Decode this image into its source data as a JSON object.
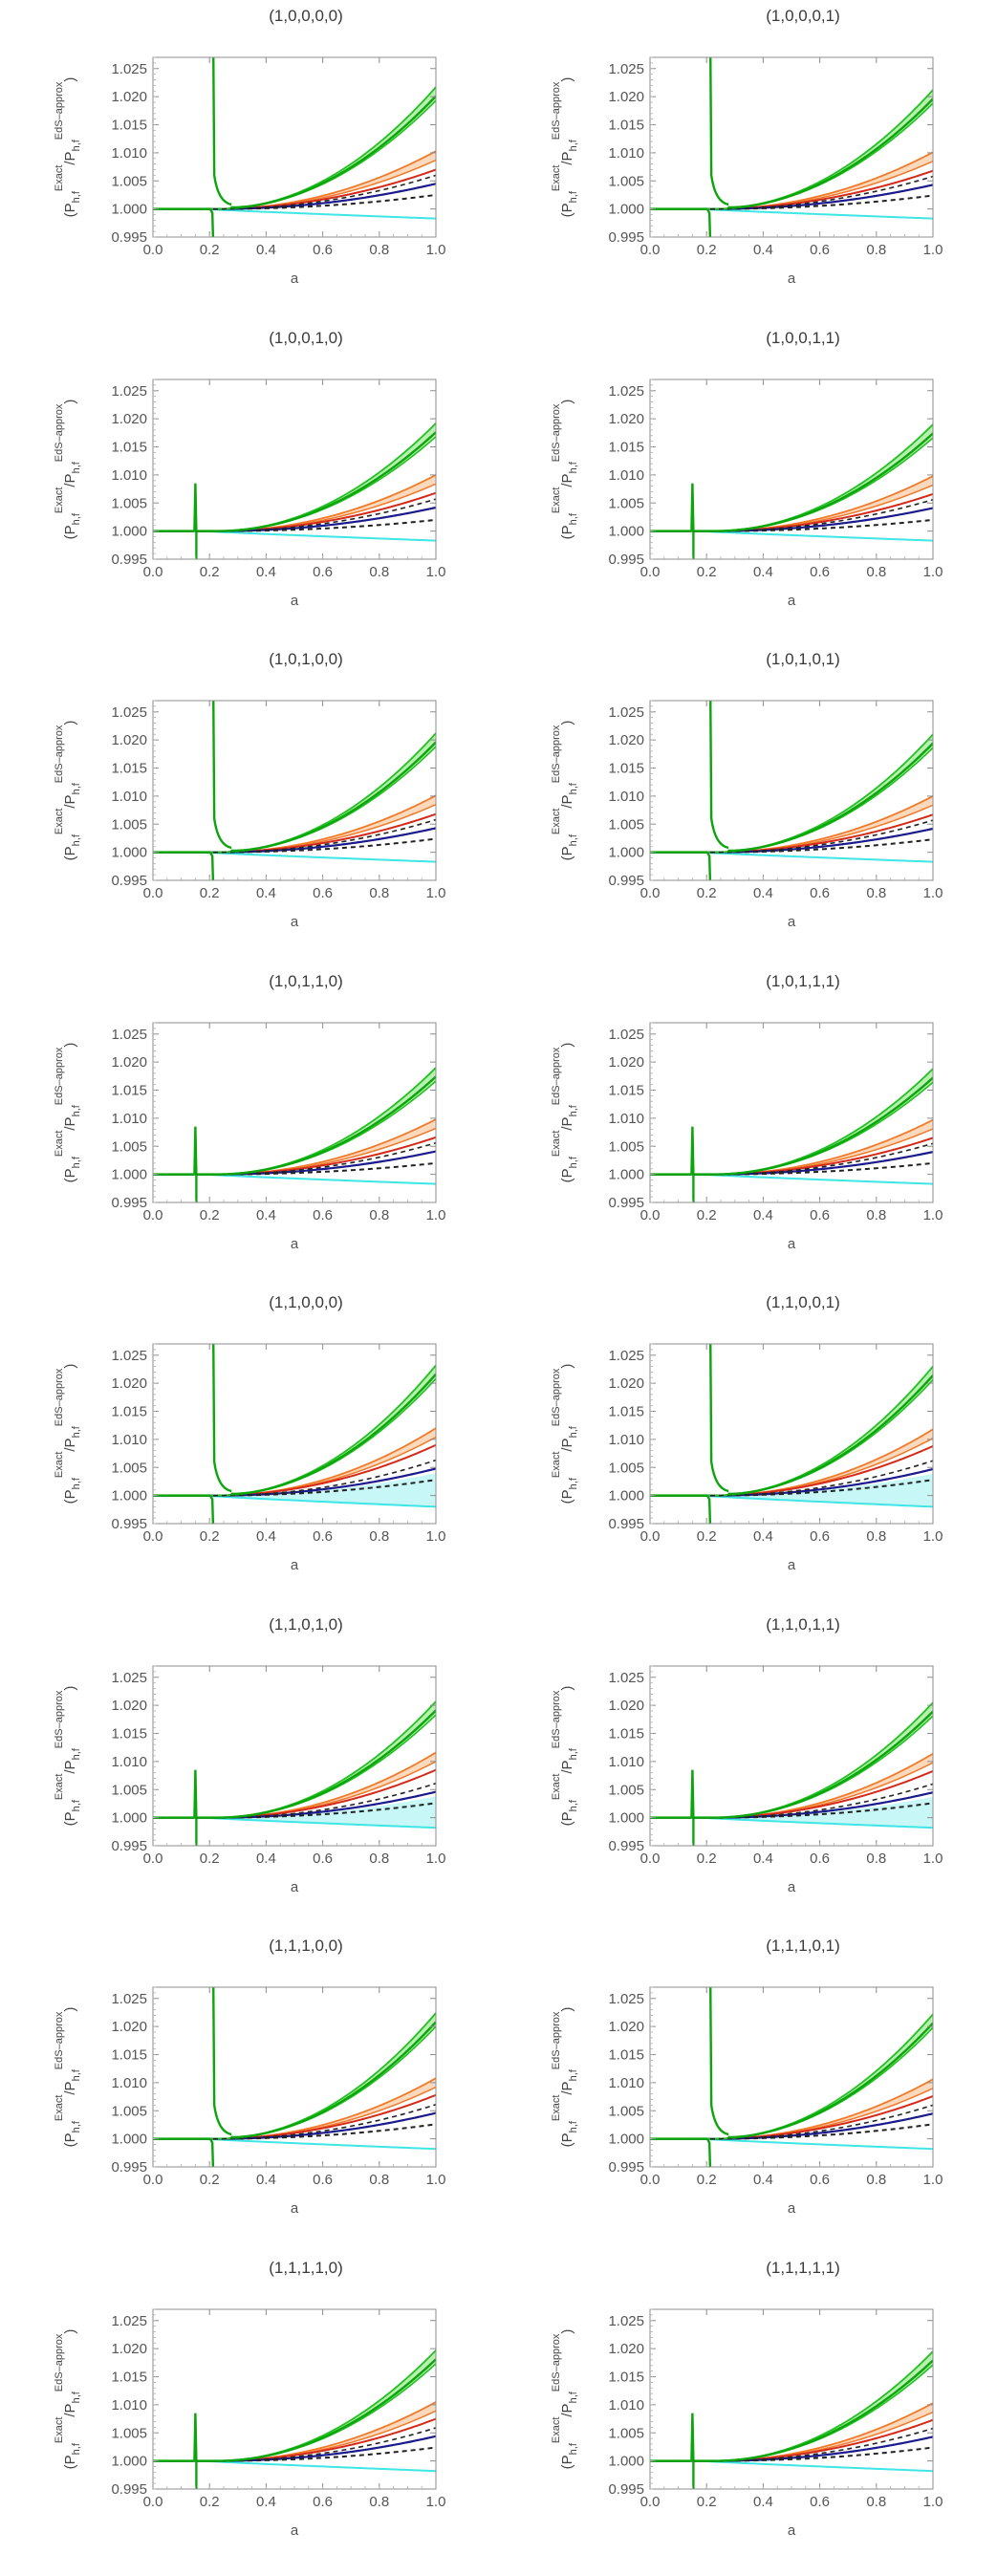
{
  "colors": {
    "green": "#1fc21f",
    "orange": "#f07a2a",
    "red": "#d42a1a",
    "navy": "#1a1a8c",
    "cyan": "#3ee6e6",
    "cyan_fill": "#c8f7f7",
    "green_fill": "#b9efb0",
    "orange_fill": "#fbd9bd",
    "dashed": "#222222"
  },
  "chart_data": [
    {
      "type": "line",
      "title": "(1,0,0,0,0)",
      "xlabel": "a",
      "ylabel": "(P_{h,f}^{Exact}/P_{h,f}^{EdS-approx})",
      "xlim": [
        0,
        1
      ],
      "ylim": [
        0.995,
        1.027
      ],
      "xticks": [
        "0.0",
        "0.2",
        "0.4",
        "0.6",
        "0.8",
        "1.0"
      ],
      "yticks": [
        "0.995",
        "1.000",
        "1.005",
        "1.010",
        "1.015",
        "1.020",
        "1.025"
      ],
      "spike_a": 0.21,
      "spike_kind": "tall",
      "series": [
        {
          "name": "green",
          "end_value": 1.0205,
          "band": 0.0012
        },
        {
          "name": "orange",
          "end_value": 1.0095,
          "band": 0.0008
        },
        {
          "name": "red",
          "end_value": 1.007
        },
        {
          "name": "navy",
          "end_value": 1.0045,
          "dashed_end": 1.0025
        },
        {
          "name": "cyan",
          "end_value": 0.9983
        }
      ]
    },
    {
      "type": "line",
      "title": "(1,0,0,0,1)",
      "xlabel": "a",
      "ylabel": "(P_{h,f}^{Exact}/P_{h,f}^{EdS-approx})",
      "xlim": [
        0,
        1
      ],
      "ylim": [
        0.995,
        1.027
      ],
      "xticks": [
        "0.0",
        "0.2",
        "0.4",
        "0.6",
        "0.8",
        "1.0"
      ],
      "yticks": [
        "0.995",
        "1.000",
        "1.005",
        "1.010",
        "1.015",
        "1.020",
        "1.025"
      ],
      "spike_a": 0.21,
      "spike_kind": "tall",
      "series": [
        {
          "name": "green",
          "end_value": 1.02,
          "band": 0.0012
        },
        {
          "name": "orange",
          "end_value": 1.0093,
          "band": 0.0008
        },
        {
          "name": "red",
          "end_value": 1.0068
        },
        {
          "name": "navy",
          "end_value": 1.0043,
          "dashed_end": 1.0024
        },
        {
          "name": "cyan",
          "end_value": 0.9983
        }
      ]
    },
    {
      "type": "line",
      "title": "(1,0,0,1,0)",
      "xlabel": "a",
      "ylabel": "(P_{h,f}^{Exact}/P_{h,f}^{EdS-approx})",
      "xlim": [
        0,
        1
      ],
      "ylim": [
        0.995,
        1.027
      ],
      "xticks": [
        "0.0",
        "0.2",
        "0.4",
        "0.6",
        "0.8",
        "1.0"
      ],
      "yticks": [
        "0.995",
        "1.000",
        "1.005",
        "1.010",
        "1.015",
        "1.020",
        "1.025"
      ],
      "spike_a": 0.15,
      "spike_kind": "short",
      "series": [
        {
          "name": "green",
          "end_value": 1.018,
          "band": 0.0012
        },
        {
          "name": "orange",
          "end_value": 1.0092,
          "band": 0.0008
        },
        {
          "name": "red",
          "end_value": 1.0068
        },
        {
          "name": "navy",
          "end_value": 1.0042,
          "dashed_end": 1.002
        },
        {
          "name": "cyan",
          "end_value": 0.9983
        }
      ]
    },
    {
      "type": "line",
      "title": "(1,0,0,1,1)",
      "xlabel": "a",
      "ylabel": "(P_{h,f}^{Exact}/P_{h,f}^{EdS-approx})",
      "xlim": [
        0,
        1
      ],
      "ylim": [
        0.995,
        1.027
      ],
      "xticks": [
        "0.0",
        "0.2",
        "0.4",
        "0.6",
        "0.8",
        "1.0"
      ],
      "yticks": [
        "0.995",
        "1.000",
        "1.005",
        "1.010",
        "1.015",
        "1.020",
        "1.025"
      ],
      "spike_a": 0.15,
      "spike_kind": "short",
      "series": [
        {
          "name": "green",
          "end_value": 1.0178,
          "band": 0.0012
        },
        {
          "name": "orange",
          "end_value": 1.009,
          "band": 0.0008
        },
        {
          "name": "red",
          "end_value": 1.0066
        },
        {
          "name": "navy",
          "end_value": 1.0041,
          "dashed_end": 1.002
        },
        {
          "name": "cyan",
          "end_value": 0.9983
        }
      ]
    },
    {
      "type": "line",
      "title": "(1,0,1,0,0)",
      "xlabel": "a",
      "ylabel": "(P_{h,f}^{Exact}/P_{h,f}^{EdS-approx})",
      "xlim": [
        0,
        1
      ],
      "ylim": [
        0.995,
        1.027
      ],
      "xticks": [
        "0.0",
        "0.2",
        "0.4",
        "0.6",
        "0.8",
        "1.0"
      ],
      "yticks": [
        "0.995",
        "1.000",
        "1.005",
        "1.010",
        "1.015",
        "1.020",
        "1.025"
      ],
      "spike_a": 0.21,
      "spike_kind": "tall",
      "series": [
        {
          "name": "green",
          "end_value": 1.02,
          "band": 0.0012
        },
        {
          "name": "orange",
          "end_value": 1.0093,
          "band": 0.0008
        },
        {
          "name": "red",
          "end_value": 1.0068
        },
        {
          "name": "navy",
          "end_value": 1.0043,
          "dashed_end": 1.0024
        },
        {
          "name": "cyan",
          "end_value": 0.9983
        }
      ]
    },
    {
      "type": "line",
      "title": "(1,0,1,0,1)",
      "xlabel": "a",
      "ylabel": "(P_{h,f}^{Exact}/P_{h,f}^{EdS-approx})",
      "xlim": [
        0,
        1
      ],
      "ylim": [
        0.995,
        1.027
      ],
      "xticks": [
        "0.0",
        "0.2",
        "0.4",
        "0.6",
        "0.8",
        "1.0"
      ],
      "yticks": [
        "0.995",
        "1.000",
        "1.005",
        "1.010",
        "1.015",
        "1.020",
        "1.025"
      ],
      "spike_a": 0.21,
      "spike_kind": "tall",
      "series": [
        {
          "name": "green",
          "end_value": 1.0198,
          "band": 0.0012
        },
        {
          "name": "orange",
          "end_value": 1.0092,
          "band": 0.0008
        },
        {
          "name": "red",
          "end_value": 1.0067
        },
        {
          "name": "navy",
          "end_value": 1.0042,
          "dashed_end": 1.0023
        },
        {
          "name": "cyan",
          "end_value": 0.9983
        }
      ]
    },
    {
      "type": "line",
      "title": "(1,0,1,1,0)",
      "xlabel": "a",
      "ylabel": "(P_{h,f}^{Exact}/P_{h,f}^{EdS-approx})",
      "xlim": [
        0,
        1
      ],
      "ylim": [
        0.995,
        1.027
      ],
      "xticks": [
        "0.0",
        "0.2",
        "0.4",
        "0.6",
        "0.8",
        "1.0"
      ],
      "yticks": [
        "0.995",
        "1.000",
        "1.005",
        "1.010",
        "1.015",
        "1.020",
        "1.025"
      ],
      "spike_a": 0.15,
      "spike_kind": "short",
      "series": [
        {
          "name": "green",
          "end_value": 1.0178,
          "band": 0.0012
        },
        {
          "name": "orange",
          "end_value": 1.009,
          "band": 0.0008
        },
        {
          "name": "red",
          "end_value": 1.0066
        },
        {
          "name": "navy",
          "end_value": 1.0041,
          "dashed_end": 1.002
        },
        {
          "name": "cyan",
          "end_value": 0.9983
        }
      ]
    },
    {
      "type": "line",
      "title": "(1,0,1,1,1)",
      "xlabel": "a",
      "ylabel": "(P_{h,f}^{Exact}/P_{h,f}^{EdS-approx})",
      "xlim": [
        0,
        1
      ],
      "ylim": [
        0.995,
        1.027
      ],
      "xticks": [
        "0.0",
        "0.2",
        "0.4",
        "0.6",
        "0.8",
        "1.0"
      ],
      "yticks": [
        "0.995",
        "1.000",
        "1.005",
        "1.010",
        "1.015",
        "1.020",
        "1.025"
      ],
      "spike_a": 0.15,
      "spike_kind": "short",
      "series": [
        {
          "name": "green",
          "end_value": 1.0176,
          "band": 0.0012
        },
        {
          "name": "orange",
          "end_value": 1.0089,
          "band": 0.0008
        },
        {
          "name": "red",
          "end_value": 1.0065
        },
        {
          "name": "navy",
          "end_value": 1.004,
          "dashed_end": 1.002
        },
        {
          "name": "cyan",
          "end_value": 0.9983
        }
      ]
    },
    {
      "type": "line",
      "title": "(1,1,0,0,0)",
      "xlabel": "a",
      "ylabel": "(P_{h,f}^{Exact}/P_{h,f}^{EdS-approx})",
      "xlim": [
        0,
        1
      ],
      "ylim": [
        0.995,
        1.027
      ],
      "xticks": [
        "0.0",
        "0.2",
        "0.4",
        "0.6",
        "0.8",
        "1.0"
      ],
      "yticks": [
        "0.995",
        "1.000",
        "1.005",
        "1.010",
        "1.015",
        "1.020",
        "1.025"
      ],
      "spike_a": 0.21,
      "spike_kind": "tall",
      "series": [
        {
          "name": "green",
          "end_value": 1.022,
          "band": 0.0012
        },
        {
          "name": "orange",
          "end_value": 1.0112,
          "band": 0.0008
        },
        {
          "name": "red",
          "end_value": 1.009
        },
        {
          "name": "navy",
          "end_value": 1.0048,
          "dashed_end": 1.0028
        },
        {
          "name": "cyan",
          "end_value": 0.998,
          "cyan_band": true
        }
      ]
    },
    {
      "type": "line",
      "title": "(1,1,0,0,1)",
      "xlabel": "a",
      "ylabel": "(P_{h,f}^{Exact}/P_{h,f}^{EdS-approx})",
      "xlim": [
        0,
        1
      ],
      "ylim": [
        0.995,
        1.027
      ],
      "xticks": [
        "0.0",
        "0.2",
        "0.4",
        "0.6",
        "0.8",
        "1.0"
      ],
      "yticks": [
        "0.995",
        "1.000",
        "1.005",
        "1.010",
        "1.015",
        "1.020",
        "1.025"
      ],
      "spike_a": 0.21,
      "spike_kind": "tall",
      "series": [
        {
          "name": "green",
          "end_value": 1.0218,
          "band": 0.0012
        },
        {
          "name": "orange",
          "end_value": 1.011,
          "band": 0.0008
        },
        {
          "name": "red",
          "end_value": 1.0088
        },
        {
          "name": "navy",
          "end_value": 1.0047,
          "dashed_end": 1.0028
        },
        {
          "name": "cyan",
          "end_value": 0.998,
          "cyan_band": true
        }
      ]
    },
    {
      "type": "line",
      "title": "(1,1,0,1,0)",
      "xlabel": "a",
      "ylabel": "(P_{h,f}^{Exact}/P_{h,f}^{EdS-approx})",
      "xlim": [
        0,
        1
      ],
      "ylim": [
        0.995,
        1.027
      ],
      "xticks": [
        "0.0",
        "0.2",
        "0.4",
        "0.6",
        "0.8",
        "1.0"
      ],
      "yticks": [
        "0.995",
        "1.000",
        "1.005",
        "1.010",
        "1.015",
        "1.020",
        "1.025"
      ],
      "spike_a": 0.15,
      "spike_kind": "short",
      "series": [
        {
          "name": "green",
          "end_value": 1.0195,
          "band": 0.0012
        },
        {
          "name": "orange",
          "end_value": 1.0108,
          "band": 0.0008
        },
        {
          "name": "red",
          "end_value": 1.0085
        },
        {
          "name": "navy",
          "end_value": 1.0046,
          "dashed_end": 1.0026
        },
        {
          "name": "cyan",
          "end_value": 0.9982,
          "cyan_band": true
        }
      ]
    },
    {
      "type": "line",
      "title": "(1,1,0,1,1)",
      "xlabel": "a",
      "ylabel": "(P_{h,f}^{Exact}/P_{h,f}^{EdS-approx})",
      "xlim": [
        0,
        1
      ],
      "ylim": [
        0.995,
        1.027
      ],
      "xticks": [
        "0.0",
        "0.2",
        "0.4",
        "0.6",
        "0.8",
        "1.0"
      ],
      "yticks": [
        "0.995",
        "1.000",
        "1.005",
        "1.010",
        "1.015",
        "1.020",
        "1.025"
      ],
      "spike_a": 0.15,
      "spike_kind": "short",
      "series": [
        {
          "name": "green",
          "end_value": 1.0193,
          "band": 0.0012
        },
        {
          "name": "orange",
          "end_value": 1.0106,
          "band": 0.0008
        },
        {
          "name": "red",
          "end_value": 1.0083
        },
        {
          "name": "navy",
          "end_value": 1.0045,
          "dashed_end": 1.0026
        },
        {
          "name": "cyan",
          "end_value": 0.9982,
          "cyan_band": true
        }
      ]
    },
    {
      "type": "line",
      "title": "(1,1,1,0,0)",
      "xlabel": "a",
      "ylabel": "(P_{h,f}^{Exact}/P_{h,f}^{EdS-approx})",
      "xlim": [
        0,
        1
      ],
      "ylim": [
        0.995,
        1.027
      ],
      "xticks": [
        "0.0",
        "0.2",
        "0.4",
        "0.6",
        "0.8",
        "1.0"
      ],
      "yticks": [
        "0.995",
        "1.000",
        "1.005",
        "1.010",
        "1.015",
        "1.020",
        "1.025"
      ],
      "spike_a": 0.21,
      "spike_kind": "tall",
      "series": [
        {
          "name": "green",
          "end_value": 1.0212,
          "band": 0.0012
        },
        {
          "name": "orange",
          "end_value": 1.01,
          "band": 0.0008
        },
        {
          "name": "red",
          "end_value": 1.0078
        },
        {
          "name": "navy",
          "end_value": 1.0046,
          "dashed_end": 1.0026
        },
        {
          "name": "cyan",
          "end_value": 0.9982
        }
      ]
    },
    {
      "type": "line",
      "title": "(1,1,1,0,1)",
      "xlabel": "a",
      "ylabel": "(P_{h,f}^{Exact}/P_{h,f}^{EdS-approx})",
      "xlim": [
        0,
        1
      ],
      "ylim": [
        0.995,
        1.027
      ],
      "xticks": [
        "0.0",
        "0.2",
        "0.4",
        "0.6",
        "0.8",
        "1.0"
      ],
      "yticks": [
        "0.995",
        "1.000",
        "1.005",
        "1.010",
        "1.015",
        "1.020",
        "1.025"
      ],
      "spike_a": 0.21,
      "spike_kind": "tall",
      "series": [
        {
          "name": "green",
          "end_value": 1.021,
          "band": 0.0012
        },
        {
          "name": "orange",
          "end_value": 1.0098,
          "band": 0.0008
        },
        {
          "name": "red",
          "end_value": 1.0076
        },
        {
          "name": "navy",
          "end_value": 1.0045,
          "dashed_end": 1.0026
        },
        {
          "name": "cyan",
          "end_value": 0.9982
        }
      ]
    },
    {
      "type": "line",
      "title": "(1,1,1,1,0)",
      "xlabel": "a",
      "ylabel": "(P_{h,f}^{Exact}/P_{h,f}^{EdS-approx})",
      "xlim": [
        0,
        1
      ],
      "ylim": [
        0.995,
        1.027
      ],
      "xticks": [
        "0.0",
        "0.2",
        "0.4",
        "0.6",
        "0.8",
        "1.0"
      ],
      "yticks": [
        "0.995",
        "1.000",
        "1.005",
        "1.010",
        "1.015",
        "1.020",
        "1.025"
      ],
      "spike_a": 0.15,
      "spike_kind": "short",
      "series": [
        {
          "name": "green",
          "end_value": 1.0185,
          "band": 0.0012
        },
        {
          "name": "orange",
          "end_value": 1.0097,
          "band": 0.0008
        },
        {
          "name": "red",
          "end_value": 1.0075
        },
        {
          "name": "navy",
          "end_value": 1.0044,
          "dashed_end": 1.0024
        },
        {
          "name": "cyan",
          "end_value": 0.9982
        }
      ]
    },
    {
      "type": "line",
      "title": "(1,1,1,1,1)",
      "xlabel": "a",
      "ylabel": "(P_{h,f}^{Exact}/P_{h,f}^{EdS-approx})",
      "xlim": [
        0,
        1
      ],
      "ylim": [
        0.995,
        1.027
      ],
      "xticks": [
        "0.0",
        "0.2",
        "0.4",
        "0.6",
        "0.8",
        "1.0"
      ],
      "yticks": [
        "0.995",
        "1.000",
        "1.005",
        "1.010",
        "1.015",
        "1.020",
        "1.025"
      ],
      "spike_a": 0.15,
      "spike_kind": "short",
      "series": [
        {
          "name": "green",
          "end_value": 1.0183,
          "band": 0.0012
        },
        {
          "name": "orange",
          "end_value": 1.0095,
          "band": 0.0008
        },
        {
          "name": "red",
          "end_value": 1.0073
        },
        {
          "name": "navy",
          "end_value": 1.0043,
          "dashed_end": 1.0024
        },
        {
          "name": "cyan",
          "end_value": 0.9982
        }
      ]
    }
  ]
}
